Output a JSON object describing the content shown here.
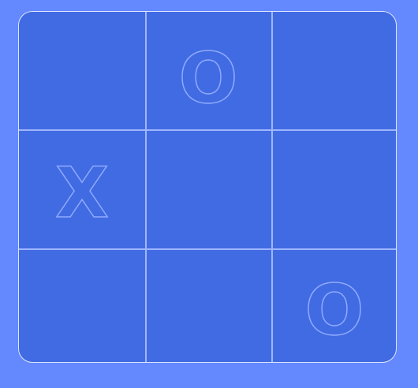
{
  "colors": {
    "background": "#6488fd",
    "board": "#416be2",
    "border": "#dfe6ff",
    "grid_line": "#9fb6ff",
    "mark_outline": "#8fa9ff"
  },
  "board": {
    "rows": [
      [
        "",
        "O",
        ""
      ],
      [
        "X",
        "",
        ""
      ],
      [
        "",
        "",
        "O"
      ]
    ]
  }
}
